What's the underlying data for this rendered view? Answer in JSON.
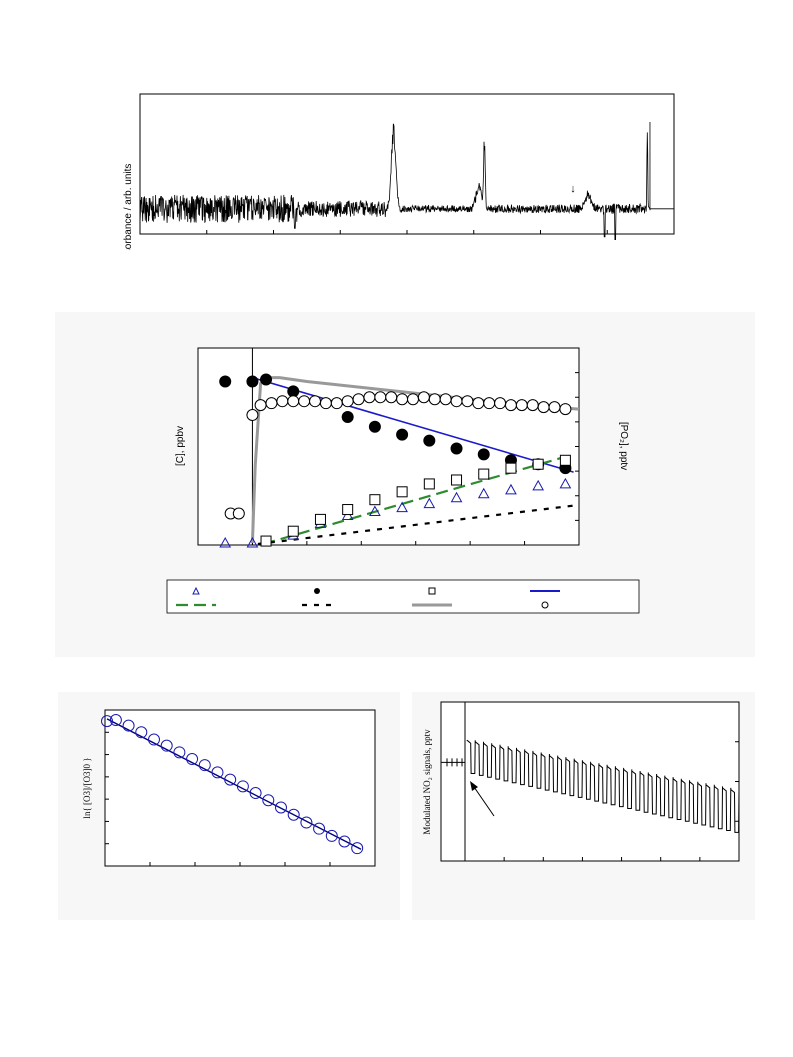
{
  "chart_data": [
    {
      "type": "line",
      "title": "",
      "ylabel": "Absorbance  /  arb. units",
      "xlabel": "",
      "annotations": [
        "↓"
      ],
      "x_ticks": 7,
      "series": [
        {
          "name": "",
          "color": "#000000",
          "baseline": 0.18,
          "noise_segments": [
            [
              0.0,
              0.3,
              0.1
            ],
            [
              0.3,
              0.46,
              0.06
            ],
            [
              0.46,
              0.62,
              0.025
            ],
            [
              0.62,
              0.86,
              0.03
            ],
            [
              0.86,
              0.95,
              0.035
            ]
          ],
          "peaks": [
            [
              0.475,
              0.72,
              0.006
            ],
            [
              0.635,
              0.33,
              0.008
            ],
            [
              0.645,
              0.6,
              0.002
            ],
            [
              0.84,
              0.28,
              0.008
            ],
            [
              0.95,
              0.8,
              0.001
            ]
          ],
          "dips": [
            [
              0.29,
              -0.14
            ],
            [
              0.87,
              -0.2
            ],
            [
              0.89,
              -0.22
            ]
          ],
          "tail_level": 0.18
        }
      ]
    },
    {
      "type": "scatter",
      "title": "",
      "ylabel": "[C],  ppbv",
      "y2label": "[PO₂], pptv",
      "xlabel": "",
      "xlim": [
        0,
        14
      ],
      "ylim": [
        0,
        10
      ],
      "injection_x": 2.0,
      "legend_placement": "bottom",
      "legend_symbols": [
        "open-triangle",
        "filled-circle",
        "open-square",
        "blue-solid-line",
        "green-dashed-line",
        "black-dashed-line",
        "grey-solid-line",
        "open-circle"
      ],
      "series": [
        {
          "name": "",
          "marker": "open-triangle",
          "color": "#1a1ab0",
          "x": [
            1.0,
            2.0,
            3.5,
            4.5,
            5.5,
            6.5,
            7.5,
            8.5,
            9.5,
            10.5,
            11.5,
            12.5,
            13.5
          ],
          "y": [
            0.1,
            0.1,
            0.5,
            1.1,
            1.5,
            1.7,
            1.9,
            2.1,
            2.4,
            2.6,
            2.8,
            3.0,
            3.1
          ]
        },
        {
          "name": "",
          "marker": "filled-circle",
          "color": "#000000",
          "x": [
            1.0,
            2.0,
            2.5,
            3.5,
            5.5,
            6.5,
            7.5,
            8.5,
            9.5,
            10.5,
            11.5,
            12.5,
            13.5
          ],
          "y": [
            8.3,
            8.3,
            8.4,
            7.8,
            6.5,
            6.0,
            5.6,
            5.3,
            4.9,
            4.6,
            4.3,
            4.1,
            3.9
          ]
        },
        {
          "name": "",
          "marker": "open-square",
          "color": "#000000",
          "x": [
            2.5,
            3.5,
            4.5,
            5.5,
            6.5,
            7.5,
            8.5,
            9.5,
            10.5,
            11.5,
            12.5,
            13.5
          ],
          "y": [
            0.2,
            0.7,
            1.3,
            1.8,
            2.3,
            2.7,
            3.1,
            3.3,
            3.6,
            3.9,
            4.1,
            4.3
          ]
        },
        {
          "name": "",
          "marker": "open-circle",
          "color": "#000000",
          "x": [
            1.2,
            1.5,
            2.0,
            2.3,
            2.7,
            3.1,
            3.5,
            3.9,
            4.3,
            4.7,
            5.1,
            5.5,
            5.9,
            6.3,
            6.7,
            7.1,
            7.5,
            7.9,
            8.3,
            8.7,
            9.1,
            9.5,
            9.9,
            10.3,
            10.7,
            11.1,
            11.5,
            11.9,
            12.3,
            12.7,
            13.1,
            13.5
          ],
          "y": [
            1.6,
            1.6,
            6.6,
            7.1,
            7.2,
            7.3,
            7.3,
            7.3,
            7.3,
            7.2,
            7.2,
            7.3,
            7.4,
            7.5,
            7.5,
            7.5,
            7.4,
            7.4,
            7.5,
            7.4,
            7.4,
            7.3,
            7.3,
            7.2,
            7.2,
            7.2,
            7.1,
            7.1,
            7.1,
            7.0,
            7.0,
            6.9
          ]
        },
        {
          "name": "",
          "line": "solid",
          "color": "#1a1acc",
          "x": [
            2.0,
            13.8
          ],
          "y": [
            8.5,
            3.7
          ]
        },
        {
          "name": "",
          "line": "dashed",
          "color": "#2e8b2e",
          "x": [
            2.4,
            13.8
          ],
          "y": [
            0.05,
            4.6
          ]
        },
        {
          "name": "",
          "line": "dashed",
          "color": "#000000",
          "x": [
            2.2,
            13.8
          ],
          "y": [
            0.05,
            2.0
          ]
        },
        {
          "name": "",
          "line": "solid",
          "color": "#999999",
          "x": [
            2.0,
            2.1,
            2.3,
            2.5,
            3.0,
            4.0,
            6.0,
            8.0,
            10.0,
            12.0,
            14.0
          ],
          "y": [
            0.1,
            4.0,
            8.2,
            8.5,
            8.5,
            8.3,
            8.0,
            7.7,
            7.4,
            7.1,
            6.9
          ]
        }
      ]
    },
    {
      "type": "scatter",
      "title": "",
      "ylabel": "ln{ [O3]/[O3]0 }",
      "xlabel": "",
      "xlim": [
        0,
        20
      ],
      "ylim": [
        -2.6,
        0.2
      ],
      "series": [
        {
          "name": "",
          "marker": "open-circle",
          "color": "#1a1ab0",
          "x": [
            0.0,
            0.7,
            1.7,
            2.7,
            3.7,
            4.7,
            5.7,
            6.7,
            7.7,
            8.7,
            9.7,
            10.7,
            11.7,
            12.7,
            13.7,
            14.7,
            15.7,
            16.7,
            17.7,
            18.7,
            19.7
          ],
          "y": [
            0.0,
            0.02,
            -0.08,
            -0.2,
            -0.33,
            -0.44,
            -0.56,
            -0.68,
            -0.79,
            -0.92,
            -1.05,
            -1.17,
            -1.29,
            -1.42,
            -1.55,
            -1.68,
            -1.82,
            -1.93,
            -2.06,
            -2.16,
            -2.28
          ]
        },
        {
          "name": "",
          "line": "solid",
          "color": "#000080",
          "x": [
            0.0,
            20.0
          ],
          "y": [
            0.04,
            -2.3
          ]
        }
      ]
    },
    {
      "type": "line",
      "title": "",
      "ylabel": "Modulated NO₂ signals, pptv",
      "xlabel": "",
      "xlim": [
        0,
        20
      ],
      "ylim": [
        0,
        1
      ],
      "injection_x": 0.0,
      "annotations": [
        "arrow"
      ],
      "series": [
        {
          "name": "",
          "color": "#000000",
          "pre_level": 0.62,
          "cycles": 33,
          "high_start": 0.76,
          "high_end": 0.45,
          "low_start": 0.55,
          "low_end": 0.18
        }
      ]
    }
  ]
}
